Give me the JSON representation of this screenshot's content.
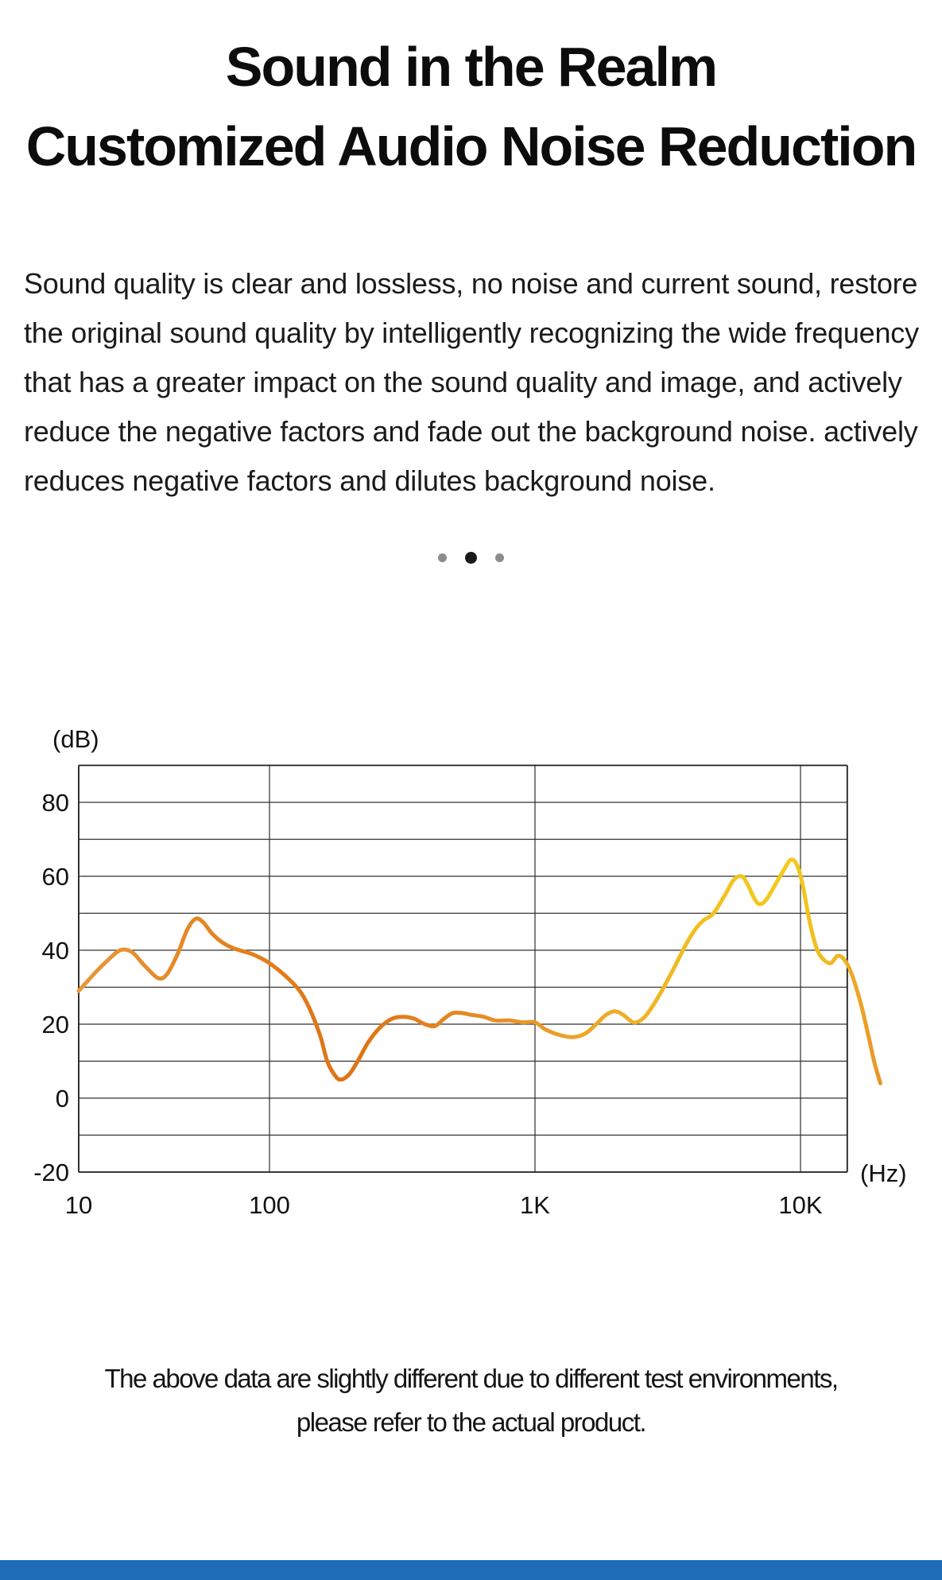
{
  "header": {
    "title_line1": "Sound in the Realm",
    "title_line2": "Customized Audio Noise Reduction"
  },
  "intro": {
    "text": "Sound quality is clear and lossless, no noise and current sound, restore the original sound quality by intelligently recognizing the wide frequency that has a greater impact on the sound quality and image, and actively reduce the negative factors and fade out the background noise. actively reduces negative factors and dilutes background noise."
  },
  "carousel": {
    "dots": [
      {
        "active": false
      },
      {
        "active": true
      },
      {
        "active": false
      }
    ]
  },
  "chart_data": {
    "type": "line",
    "title": "",
    "xlabel": "(Hz)",
    "ylabel": "(dB)",
    "x_scale": "log",
    "xlim": [
      10,
      15000
    ],
    "ylim": [
      -20,
      90
    ],
    "grid": true,
    "y_grid_step": 10,
    "x_ticks": [
      {
        "value": 10,
        "label": "10"
      },
      {
        "value": 100,
        "label": "100"
      },
      {
        "value": 1000,
        "label": "1K"
      },
      {
        "value": 10000,
        "label": "10K"
      }
    ],
    "y_ticks": [
      {
        "value": 80,
        "label": "80"
      },
      {
        "value": 60,
        "label": "60"
      },
      {
        "value": 40,
        "label": "40"
      },
      {
        "value": 20,
        "label": "20"
      },
      {
        "value": 0,
        "label": "0"
      },
      {
        "value": -20,
        "label": "-20"
      }
    ],
    "gradient_stops": [
      {
        "offset": "0%",
        "color": "#E8973A"
      },
      {
        "offset": "18%",
        "color": "#E4831F"
      },
      {
        "offset": "34%",
        "color": "#DE7314"
      },
      {
        "offset": "50%",
        "color": "#E68C26"
      },
      {
        "offset": "66%",
        "color": "#EDAC2A"
      },
      {
        "offset": "80%",
        "color": "#F2C31F"
      },
      {
        "offset": "89%",
        "color": "#F3CA1C"
      },
      {
        "offset": "95%",
        "color": "#EFB424"
      },
      {
        "offset": "100%",
        "color": "#E89428"
      }
    ],
    "series": [
      {
        "name": "frequency-response-curve",
        "points": [
          [
            10,
            29
          ],
          [
            12,
            33.5
          ],
          [
            14,
            37
          ],
          [
            16.5,
            40
          ],
          [
            19,
            39.5
          ],
          [
            22,
            36
          ],
          [
            26,
            32.5
          ],
          [
            29,
            33.5
          ],
          [
            33,
            39
          ],
          [
            37,
            45.5
          ],
          [
            41,
            48.5
          ],
          [
            45,
            47.5
          ],
          [
            50,
            44.5
          ],
          [
            57,
            42
          ],
          [
            65,
            40.5
          ],
          [
            75,
            39.5
          ],
          [
            85,
            38.5
          ],
          [
            100,
            36.5
          ],
          [
            115,
            33
          ],
          [
            130,
            29
          ],
          [
            142,
            24
          ],
          [
            155,
            17
          ],
          [
            165,
            10
          ],
          [
            175,
            6.5
          ],
          [
            185,
            5
          ],
          [
            200,
            6.5
          ],
          [
            215,
            10
          ],
          [
            235,
            15
          ],
          [
            260,
            19
          ],
          [
            290,
            21.5
          ],
          [
            320,
            22
          ],
          [
            350,
            21.5
          ],
          [
            385,
            20
          ],
          [
            420,
            19.5
          ],
          [
            455,
            21.5
          ],
          [
            490,
            23
          ],
          [
            530,
            23
          ],
          [
            580,
            22.5
          ],
          [
            640,
            22
          ],
          [
            710,
            21
          ],
          [
            800,
            21
          ],
          [
            900,
            20.5
          ],
          [
            1000,
            20.5
          ],
          [
            1100,
            18.5
          ],
          [
            1250,
            17
          ],
          [
            1400,
            16.5
          ],
          [
            1550,
            17.5
          ],
          [
            1700,
            20
          ],
          [
            1850,
            22.5
          ],
          [
            2000,
            23.5
          ],
          [
            2150,
            22.5
          ],
          [
            2350,
            20.5
          ],
          [
            2550,
            21.5
          ],
          [
            2750,
            24.5
          ],
          [
            3000,
            29
          ],
          [
            3300,
            34.5
          ],
          [
            3700,
            41.5
          ],
          [
            4000,
            45.5
          ],
          [
            4300,
            48
          ],
          [
            4700,
            50
          ],
          [
            5200,
            55
          ],
          [
            5600,
            59
          ],
          [
            6000,
            60
          ],
          [
            6300,
            58
          ],
          [
            6700,
            54
          ],
          [
            7000,
            52.5
          ],
          [
            7400,
            53.5
          ],
          [
            8000,
            57.5
          ],
          [
            8700,
            62
          ],
          [
            9200,
            64.5
          ],
          [
            9700,
            63
          ],
          [
            10200,
            57.5
          ],
          [
            10800,
            48
          ],
          [
            11500,
            40.5
          ],
          [
            12200,
            37.5
          ],
          [
            13000,
            36.5
          ],
          [
            13800,
            38.5
          ],
          [
            14600,
            37.5
          ],
          [
            15500,
            34
          ],
          [
            16800,
            26
          ],
          [
            18000,
            17
          ],
          [
            19000,
            9.5
          ],
          [
            20000,
            4
          ]
        ]
      }
    ]
  },
  "footer": {
    "line1": "The above data are slightly different due to different test environments,",
    "line2": "please refer to the actual product."
  },
  "page": {
    "accent_bar_color": "#1e6bb8"
  }
}
